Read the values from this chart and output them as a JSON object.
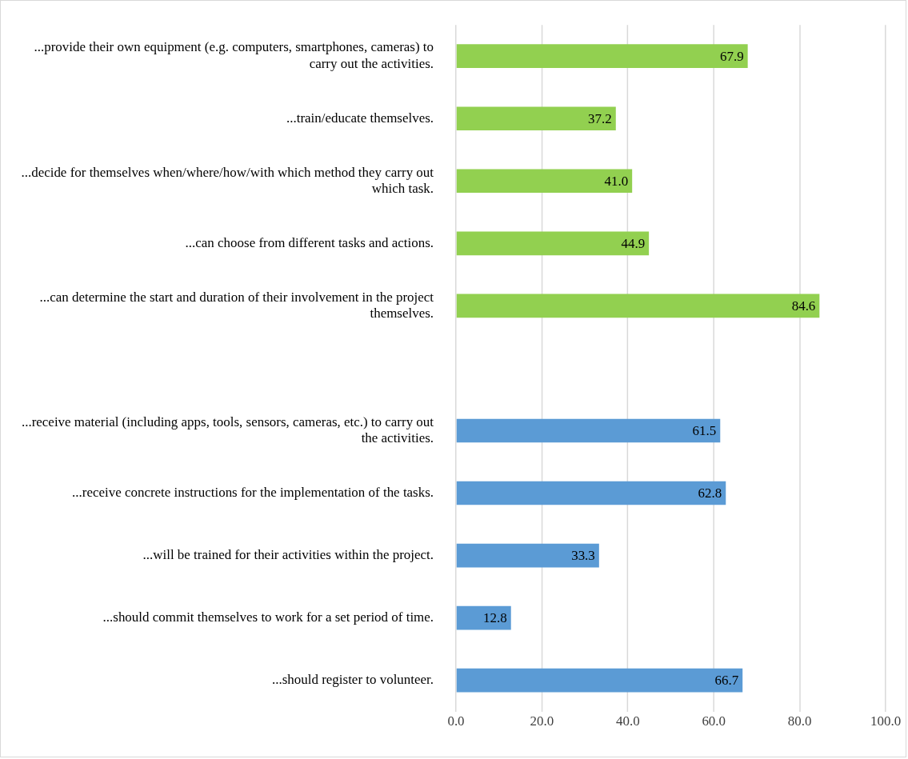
{
  "chart_data": {
    "type": "bar",
    "orientation": "horizontal",
    "categories": [
      "...provide their own equipment (e.g. computers, smartphones, cameras) to carry out the activities.",
      "...train/educate themselves.",
      "...decide for themselves when/where/how/with which method they carry out which task.",
      "...can choose from different tasks and actions.",
      "...can determine the start and duration of their involvement in the project themselves.",
      null,
      "...receive material (including apps, tools, sensors, cameras, etc.) to carry out the activities.",
      "...receive concrete instructions for the implementation of the tasks.",
      "...will be trained for their activities within the project.",
      "...should commit themselves to work for a set period of time.",
      "...should register to volunteer."
    ],
    "values": [
      67.9,
      37.2,
      41.0,
      44.9,
      84.6,
      null,
      61.5,
      62.8,
      33.3,
      12.8,
      66.7
    ],
    "value_labels": [
      "67.9",
      "37.2",
      "41.0",
      "44.9",
      "84.6",
      null,
      "61.5",
      "62.8",
      "33.3",
      "12.8",
      "66.7"
    ],
    "colors": [
      "#92d050",
      "#92d050",
      "#92d050",
      "#92d050",
      "#92d050",
      null,
      "#5b9bd5",
      "#5b9bd5",
      "#5b9bd5",
      "#5b9bd5",
      "#5b9bd5"
    ],
    "xlim": [
      0,
      100
    ],
    "xticks": [
      {
        "value": 0,
        "label": "0.0"
      },
      {
        "value": 20,
        "label": "20.0"
      },
      {
        "value": 40,
        "label": "40.0"
      },
      {
        "value": 60,
        "label": "60.0"
      },
      {
        "value": 80,
        "label": "80.0"
      },
      {
        "value": 100,
        "label": "100.0"
      }
    ],
    "grid": "x",
    "legend": false
  }
}
